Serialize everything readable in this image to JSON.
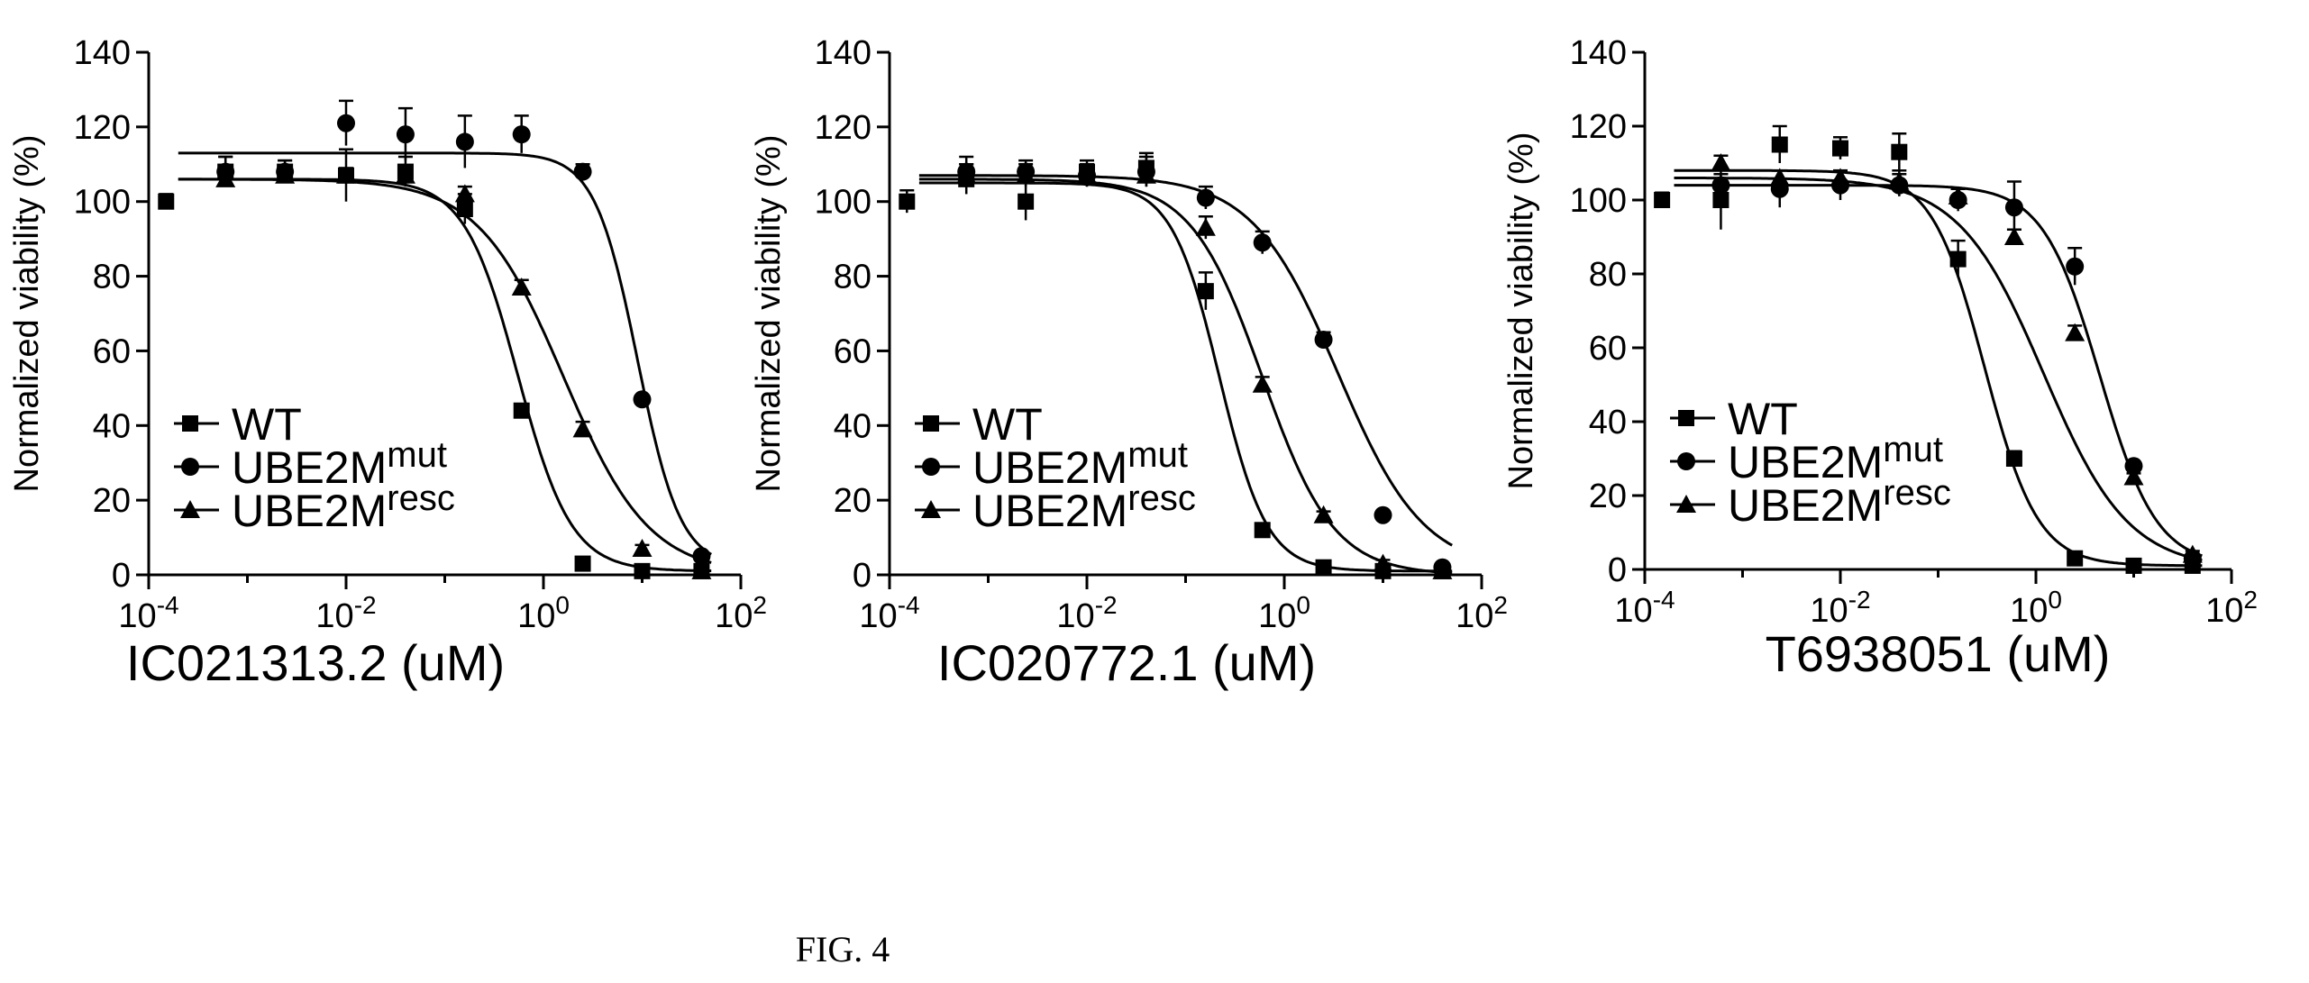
{
  "figure": {
    "label": "FIG. 4"
  },
  "panels_common": {
    "ylabel": "Normalized viability (%)",
    "yticks": [
      "0",
      "20",
      "40",
      "60",
      "80",
      "100",
      "120",
      "140"
    ],
    "xticks": [
      {
        "base": "10",
        "exp": "-4"
      },
      {
        "base": "10",
        "exp": "-2"
      },
      {
        "base": "10",
        "exp": "0"
      },
      {
        "base": "10",
        "exp": "2"
      }
    ]
  },
  "chart_data": [
    {
      "type": "scatter",
      "title": "",
      "xlabel": "IC021313.2 (uM)",
      "ylabel": "Normalized viability (%)",
      "xscale": "log",
      "xlim": [
        0.0001,
        100
      ],
      "ylim": [
        0,
        140
      ],
      "legend": "bottom-left",
      "grid": false,
      "series": [
        {
          "name": "WT",
          "sup": "",
          "marker": "square",
          "x": [
            0.00015,
            0.0006,
            0.0024,
            0.01,
            0.04,
            0.16,
            0.6,
            2.5,
            10,
            40
          ],
          "y": [
            100,
            108,
            108,
            107,
            108,
            98,
            44,
            3,
            1,
            1
          ],
          "err": [
            2,
            4,
            3,
            7,
            4,
            4,
            1,
            1,
            1,
            1
          ],
          "fit": {
            "top": 106,
            "bottom": 1,
            "ec50": 0.55,
            "hill": 1.6
          }
        },
        {
          "name": "UBE2M",
          "sup": "mut",
          "marker": "circle",
          "x": [
            0.0006,
            0.0024,
            0.01,
            0.04,
            0.16,
            0.6,
            2.5,
            10,
            40
          ],
          "y": [
            108,
            108,
            121,
            118,
            116,
            118,
            108,
            47,
            5
          ],
          "err": [
            4,
            3,
            6,
            7,
            7,
            5,
            2,
            1,
            1
          ],
          "fit": {
            "top": 113,
            "bottom": 2,
            "ec50": 9,
            "hill": 2.0
          }
        },
        {
          "name": "UBE2M",
          "sup": "resc",
          "marker": "triangle",
          "x": [
            0.0006,
            0.0024,
            0.01,
            0.04,
            0.16,
            0.6,
            2.5,
            10,
            40
          ],
          "y": [
            106,
            107,
            107,
            107,
            102,
            77,
            39,
            7,
            1
          ],
          "err": [
            2,
            2,
            2,
            2,
            2,
            2,
            2,
            1,
            1
          ],
          "fit": {
            "top": 106,
            "bottom": 0,
            "ec50": 1.6,
            "hill": 1.0
          }
        }
      ]
    },
    {
      "type": "scatter",
      "title": "",
      "xlabel": "IC020772.1 (uM)",
      "ylabel": "Normalized viability (%)",
      "xscale": "log",
      "xlim": [
        0.0001,
        100
      ],
      "ylim": [
        0,
        140
      ],
      "legend": "bottom-left",
      "grid": false,
      "series": [
        {
          "name": "WT",
          "sup": "",
          "marker": "square",
          "x": [
            0.00015,
            0.0006,
            0.0024,
            0.01,
            0.04,
            0.16,
            0.6,
            2.5,
            10,
            40
          ],
          "y": [
            100,
            106,
            100,
            108,
            109,
            76,
            12,
            2,
            1,
            1
          ],
          "err": [
            3,
            4,
            5,
            3,
            4,
            5,
            1,
            1,
            1,
            1
          ],
          "fit": {
            "top": 105,
            "bottom": 1,
            "ec50": 0.22,
            "hill": 1.8
          }
        },
        {
          "name": "UBE2M",
          "sup": "mut",
          "marker": "circle",
          "x": [
            0.0006,
            0.0024,
            0.01,
            0.04,
            0.16,
            0.6,
            2.5,
            10,
            40
          ],
          "y": [
            108,
            108,
            107,
            108,
            101,
            89,
            63,
            16,
            2
          ],
          "err": [
            4,
            3,
            3,
            4,
            3,
            3,
            2,
            1,
            1
          ],
          "fit": {
            "top": 107,
            "bottom": 1,
            "ec50": 3.5,
            "hill": 1.0
          }
        },
        {
          "name": "UBE2M",
          "sup": "resc",
          "marker": "triangle",
          "x": [
            0.0006,
            0.0024,
            0.01,
            0.04,
            0.16,
            0.6,
            2.5,
            10,
            40
          ],
          "y": [
            107,
            107,
            107,
            107,
            93,
            51,
            16,
            3,
            1
          ],
          "err": [
            3,
            3,
            3,
            3,
            3,
            2,
            1,
            1,
            1
          ],
          "fit": {
            "top": 106,
            "bottom": 0,
            "ec50": 0.6,
            "hill": 1.2
          }
        }
      ]
    },
    {
      "type": "scatter",
      "title": "",
      "xlabel": "T6938051 (uM)",
      "ylabel": "Normalized viability (%)",
      "xscale": "log",
      "xlim": [
        0.0001,
        100
      ],
      "ylim": [
        0,
        140
      ],
      "legend": "bottom-left",
      "grid": false,
      "series": [
        {
          "name": "WT",
          "sup": "",
          "marker": "square",
          "x": [
            0.00015,
            0.0006,
            0.0024,
            0.01,
            0.04,
            0.16,
            0.6,
            2.5,
            10,
            40
          ],
          "y": [
            100,
            100,
            115,
            114,
            113,
            84,
            30,
            3,
            1,
            1
          ],
          "err": [
            2,
            8,
            5,
            3,
            5,
            5,
            2,
            1,
            1,
            1
          ],
          "fit": {
            "top": 108,
            "bottom": 1,
            "ec50": 0.3,
            "hill": 1.6
          }
        },
        {
          "name": "UBE2M",
          "sup": "mut",
          "marker": "circle",
          "x": [
            0.0006,
            0.0024,
            0.01,
            0.04,
            0.16,
            0.6,
            2.5,
            10,
            40
          ],
          "y": [
            104,
            103,
            104,
            104,
            100,
            98,
            82,
            28,
            3
          ],
          "err": [
            3,
            5,
            4,
            3,
            3,
            7,
            5,
            1,
            1
          ],
          "fit": {
            "top": 104,
            "bottom": 1,
            "ec50": 4.5,
            "hill": 1.5
          }
        },
        {
          "name": "UBE2M",
          "sup": "resc",
          "marker": "triangle",
          "x": [
            0.0006,
            0.0024,
            0.01,
            0.04,
            0.16,
            0.6,
            2.5,
            10,
            40
          ],
          "y": [
            110,
            106,
            106,
            105,
            101,
            90,
            64,
            25,
            4
          ],
          "err": [
            2,
            2,
            2,
            3,
            2,
            2,
            2,
            1,
            1
          ],
          "fit": {
            "top": 106,
            "bottom": 0,
            "ec50": 1.2,
            "hill": 1.0
          }
        }
      ]
    }
  ]
}
